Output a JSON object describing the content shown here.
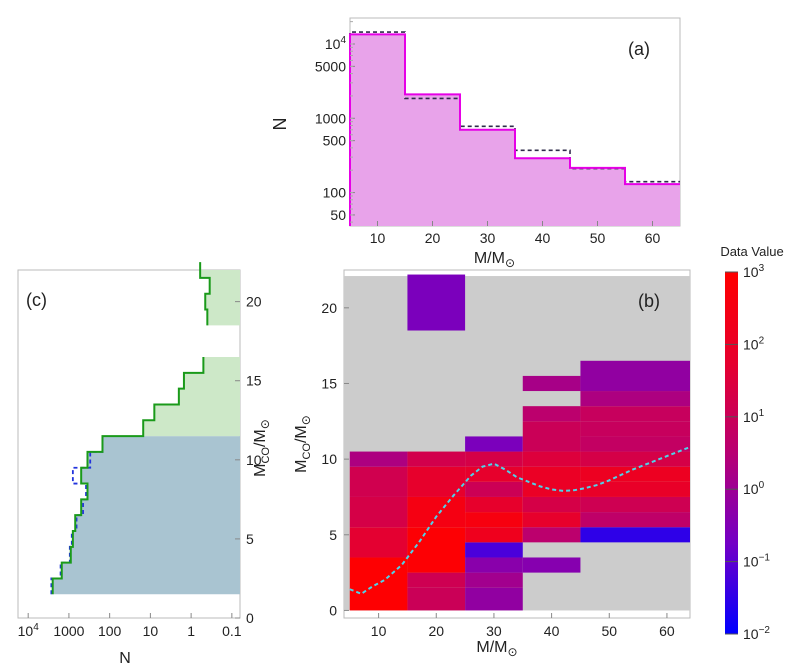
{
  "chart_data": [
    {
      "panel_label": "(a)",
      "type": "bar",
      "xlabel_main": "M/M",
      "xlabel_sym": "⊙",
      "ylabel": "N",
      "xlim": [
        5,
        65
      ],
      "ylim_log10": [
        1.55,
        4.35
      ],
      "x_ticks": [
        10,
        20,
        30,
        40,
        50,
        60
      ],
      "x_tick_labels": [
        "10",
        "20",
        "30",
        "40",
        "50",
        "60"
      ],
      "y_ticks": [
        50,
        100,
        500,
        1000,
        5000,
        10000
      ],
      "y_tick_labels": [
        "50",
        "100",
        "500",
        "1000",
        "5000"
      ],
      "y_tick_10k_base": "10",
      "y_tick_10k_exp": "4",
      "bin_edges": [
        5,
        15,
        25,
        35,
        45,
        55,
        65
      ],
      "series": [
        {
          "name": "solid",
          "color": "#e600e6",
          "fill": "#e8a3ea",
          "values": [
            13500,
            2100,
            700,
            290,
            215,
            130
          ]
        },
        {
          "name": "dashed",
          "color": "#2e2b4a",
          "values": [
            14500,
            1850,
            780,
            370,
            210,
            140
          ]
        }
      ]
    },
    {
      "panel_label": "(b)",
      "type": "heatmap",
      "xlabel_main": "M/M",
      "xlabel_sym": "⊙",
      "ylabel_main": "M",
      "ylabel_sub": "CO",
      "ylabel_mid": "/M",
      "ylabel_sym": "⊙",
      "xlim": [
        4,
        64
      ],
      "ylim": [
        -0.5,
        22.5
      ],
      "x_ticks": [
        10,
        20,
        30,
        40,
        50,
        60
      ],
      "x_tick_labels": [
        "10",
        "20",
        "30",
        "40",
        "50",
        "60"
      ],
      "y_ticks": [
        0,
        5,
        10,
        15,
        20
      ],
      "y_tick_labels": [
        "0",
        "5",
        "10",
        "15",
        "20"
      ],
      "background_color": "#cccccc",
      "colorbar": {
        "title": "Data Value",
        "log10_range": [
          -2,
          3
        ],
        "tick_exps": [
          "3",
          "2",
          "1",
          "0",
          "−1",
          "−2"
        ],
        "tick_base": "10",
        "colors": [
          "#0000ff",
          "#7300c6",
          "#b80073",
          "#e6002e",
          "#ff0000"
        ]
      },
      "cells": [
        {
          "x": [
            5,
            15
          ],
          "y": [
            0,
            3.5
          ],
          "log10": 2.95
        },
        {
          "x": [
            5,
            15
          ],
          "y": [
            3.5,
            5.5
          ],
          "log10": 1.7
        },
        {
          "x": [
            5,
            15
          ],
          "y": [
            5.5,
            7.5
          ],
          "log10": 1.3
        },
        {
          "x": [
            5,
            15
          ],
          "y": [
            7.5,
            9.5
          ],
          "log10": 1.15
        },
        {
          "x": [
            5,
            15
          ],
          "y": [
            9.5,
            10.5
          ],
          "log10": 0.3
        },
        {
          "x": [
            15,
            25
          ],
          "y": [
            0,
            1.5
          ],
          "log10": 1.0
        },
        {
          "x": [
            15,
            25
          ],
          "y": [
            1.5,
            2.5
          ],
          "log10": 1.1
        },
        {
          "x": [
            15,
            25
          ],
          "y": [
            2.5,
            5.5
          ],
          "log10": 2.9
        },
        {
          "x": [
            15,
            25
          ],
          "y": [
            5.5,
            7.5
          ],
          "log10": 2.5
        },
        {
          "x": [
            15,
            25
          ],
          "y": [
            7.5,
            9.5
          ],
          "log10": 1.8
        },
        {
          "x": [
            15,
            25
          ],
          "y": [
            9.5,
            10.5
          ],
          "log10": 1.2
        },
        {
          "x": [
            15,
            25
          ],
          "y": [
            18.5,
            22.2
          ],
          "log10": -0.6
        },
        {
          "x": [
            25,
            35
          ],
          "y": [
            0,
            1.5
          ],
          "log10": -0.2
        },
        {
          "x": [
            25,
            35
          ],
          "y": [
            1.5,
            2.5
          ],
          "log10": 0.1
        },
        {
          "x": [
            25,
            35
          ],
          "y": [
            2.5,
            3.5
          ],
          "log10": -0.35
        },
        {
          "x": [
            25,
            35
          ],
          "y": [
            3.5,
            4.5
          ],
          "log10": -1.2
        },
        {
          "x": [
            25,
            35
          ],
          "y": [
            4.5,
            5.5
          ],
          "log10": 2.2
        },
        {
          "x": [
            25,
            35
          ],
          "y": [
            5.5,
            6.5
          ],
          "log10": 2.6
        },
        {
          "x": [
            25,
            35
          ],
          "y": [
            6.5,
            7.5
          ],
          "log10": 1.8
        },
        {
          "x": [
            25,
            35
          ],
          "y": [
            7.5,
            8.5
          ],
          "log10": 1.05
        },
        {
          "x": [
            25,
            35
          ],
          "y": [
            8.5,
            9.5
          ],
          "log10": 1.8
        },
        {
          "x": [
            25,
            35
          ],
          "y": [
            9.5,
            10.5
          ],
          "log10": 1.3
        },
        {
          "x": [
            25,
            35
          ],
          "y": [
            10.5,
            11.5
          ],
          "log10": -0.6
        },
        {
          "x": [
            35,
            45
          ],
          "y": [
            2.5,
            3.5
          ],
          "log10": -0.4
        },
        {
          "x": [
            35,
            45
          ],
          "y": [
            4.5,
            5.5
          ],
          "log10": 0.6
        },
        {
          "x": [
            35,
            45
          ],
          "y": [
            5.5,
            6.5
          ],
          "log10": 1.8
        },
        {
          "x": [
            35,
            45
          ],
          "y": [
            6.5,
            7.5
          ],
          "log10": 1.3
        },
        {
          "x": [
            35,
            45
          ],
          "y": [
            7.5,
            9.5
          ],
          "log10": 2.0
        },
        {
          "x": [
            35,
            45
          ],
          "y": [
            9.5,
            10.5
          ],
          "log10": 1.5
        },
        {
          "x": [
            35,
            45
          ],
          "y": [
            10.5,
            12.5
          ],
          "log10": 1.0
        },
        {
          "x": [
            35,
            45
          ],
          "y": [
            12.5,
            13.5
          ],
          "log10": 0.6
        },
        {
          "x": [
            35,
            45
          ],
          "y": [
            14.5,
            15.5
          ],
          "log10": 0.2
        },
        {
          "x": [
            45,
            64
          ],
          "y": [
            4.5,
            5.5
          ],
          "log10": -1.5
        },
        {
          "x": [
            45,
            64
          ],
          "y": [
            5.5,
            6.5
          ],
          "log10": 0.7
        },
        {
          "x": [
            45,
            64
          ],
          "y": [
            6.5,
            7.5
          ],
          "log10": 1.1
        },
        {
          "x": [
            45,
            64
          ],
          "y": [
            7.5,
            8.5
          ],
          "log10": 1.9
        },
        {
          "x": [
            45,
            64
          ],
          "y": [
            8.5,
            9.5
          ],
          "log10": 2.1
        },
        {
          "x": [
            45,
            64
          ],
          "y": [
            9.5,
            10.5
          ],
          "log10": 1.3
        },
        {
          "x": [
            45,
            64
          ],
          "y": [
            10.5,
            11.5
          ],
          "log10": 0.8
        },
        {
          "x": [
            45,
            64
          ],
          "y": [
            11.5,
            12.5
          ],
          "log10": 0.9
        },
        {
          "x": [
            45,
            64
          ],
          "y": [
            12.5,
            13.5
          ],
          "log10": 0.9
        },
        {
          "x": [
            45,
            64
          ],
          "y": [
            13.5,
            14.5
          ],
          "log10": 0.3
        },
        {
          "x": [
            45,
            64
          ],
          "y": [
            14.5,
            16.5
          ],
          "log10": -0.2
        }
      ],
      "curve": {
        "name": "mean M_CO",
        "color": "#4fd3e8",
        "x": [
          5,
          7,
          9,
          11,
          14,
          17,
          20,
          23,
          26,
          28,
          30,
          32,
          34,
          36,
          38,
          40,
          42,
          44,
          46,
          48,
          50,
          52,
          54,
          56,
          58,
          60,
          62,
          64
        ],
        "y": [
          1.4,
          1.1,
          1.6,
          2.0,
          3.0,
          4.5,
          6.2,
          7.6,
          8.9,
          9.5,
          9.7,
          9.3,
          8.8,
          8.5,
          8.2,
          8.0,
          7.9,
          7.95,
          8.1,
          8.3,
          8.6,
          8.95,
          9.3,
          9.6,
          9.9,
          10.2,
          10.5,
          10.8
        ]
      }
    },
    {
      "panel_label": "(c)",
      "type": "area",
      "xlabel": "N",
      "ylabel_main": "M",
      "ylabel_sub": "CO",
      "ylabel_mid": "/M",
      "ylabel_sym": "⊙",
      "x_log10_range": [
        4.25,
        -1.2
      ],
      "x_log_reversed": true,
      "ylim": [
        0,
        22
      ],
      "x_tick_log10": [
        4,
        3,
        2,
        1,
        0,
        -1
      ],
      "x_tick_labels": [
        "1000",
        "100",
        "10",
        "1",
        "0.1"
      ],
      "x_tick_10k_base": "10",
      "x_tick_10k_exp": "4",
      "y_ticks": [
        0,
        5,
        10,
        15,
        20
      ],
      "y_tick_labels": [
        "0",
        "5",
        "10",
        "15",
        "20"
      ],
      "fills": [
        {
          "name": "low-range",
          "color": "#a9c4d1",
          "y_range": [
            1.5,
            11.5
          ]
        },
        {
          "name": "high-range",
          "color": "#cde8c8",
          "y_range": [
            11.5,
            16.5
          ]
        },
        {
          "name": "top-range",
          "color": "#cde8c8",
          "y_range": [
            18.5,
            22
          ]
        }
      ],
      "series": [
        {
          "name": "solid",
          "color": "#1a9a1a",
          "steps": [
            [
              1.5,
              2500
            ],
            [
              2.5,
              1500
            ],
            [
              3.5,
              900
            ],
            [
              4.5,
              800
            ],
            [
              5.5,
              700
            ],
            [
              6.5,
              500
            ],
            [
              7.5,
              350
            ],
            [
              8.5,
              500
            ],
            [
              9.5,
              350
            ],
            [
              10.5,
              150
            ],
            [
              11.5,
              15
            ],
            [
              12.5,
              8
            ],
            [
              13.5,
              2
            ],
            [
              14.5,
              1.5
            ],
            [
              15.5,
              0.5
            ],
            [
              16.5,
              null
            ],
            [
              18.5,
              0.4
            ],
            [
              19.5,
              0.45
            ],
            [
              20.5,
              0.35
            ],
            [
              21.5,
              0.6
            ]
          ]
        },
        {
          "name": "dashed",
          "color": "#2233dd",
          "steps": [
            [
              1.5,
              2700
            ],
            [
              2.5,
              1600
            ],
            [
              3.5,
              950
            ],
            [
              4.5,
              850
            ],
            [
              5.5,
              650
            ],
            [
              6.5,
              450
            ],
            [
              7.5,
              380
            ],
            [
              8.5,
              800
            ],
            [
              9.5,
              300
            ],
            [
              10.5,
              150
            ]
          ]
        }
      ]
    }
  ]
}
